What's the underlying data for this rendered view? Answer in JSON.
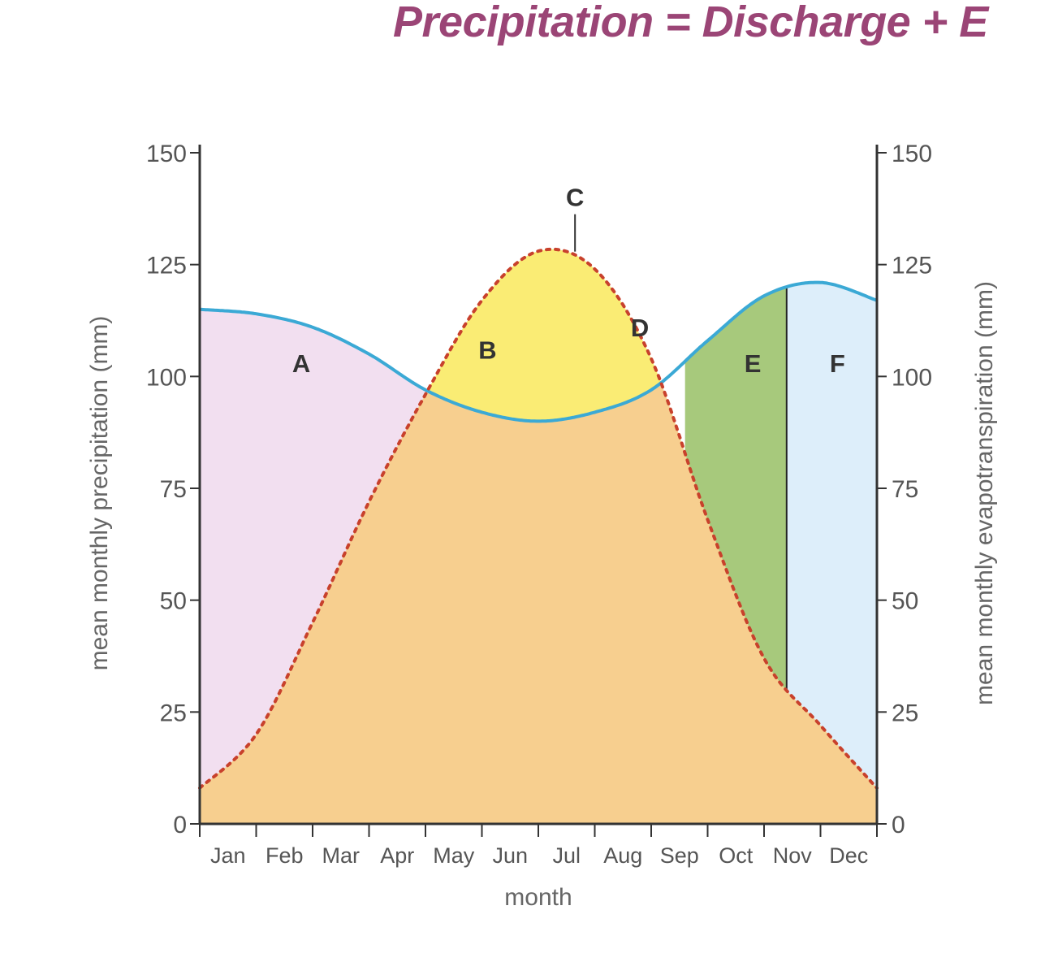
{
  "title": "Precipitation = Discharge + E",
  "chart_data": {
    "type": "area",
    "categories": [
      "Jan",
      "Feb",
      "Mar",
      "Apr",
      "May",
      "Jun",
      "Jul",
      "Aug",
      "Sep",
      "Oct",
      "Nov",
      "Dec"
    ],
    "xlabel": "month",
    "ylabel": "mean monthly precipitation (mm)",
    "ylabel_right": "mean monthly evapotranspiration (mm)",
    "ylim": [
      0,
      150
    ],
    "yticks": [
      0,
      25,
      50,
      75,
      100,
      125,
      150
    ],
    "series": [
      {
        "name": "precipitation",
        "style": "solid-blue",
        "x": [
          0,
          1,
          2,
          3,
          4,
          5,
          6,
          7,
          8,
          9,
          10,
          11,
          12
        ],
        "values": [
          115,
          114,
          111,
          105,
          97,
          92,
          90,
          92,
          97,
          108,
          118,
          121,
          117
        ]
      },
      {
        "name": "evapotranspiration",
        "style": "dotted-red",
        "x": [
          0,
          1,
          2,
          3,
          4,
          5,
          6,
          7,
          8,
          9,
          10,
          11,
          12
        ],
        "values": [
          8,
          20,
          45,
          72,
          96,
          117,
          128,
          124,
          104,
          68,
          37,
          22,
          8
        ]
      }
    ],
    "regions": [
      {
        "label": "A",
        "color": "#f2dff0"
      },
      {
        "label": "B",
        "color": "#faec74"
      },
      {
        "label": "C",
        "color": "#faec74"
      },
      {
        "label": "D",
        "color": "#faec74"
      },
      {
        "label": "E",
        "color": "#a7c97c"
      },
      {
        "label": "F",
        "color": "#ddeefa"
      }
    ],
    "colors": {
      "evapotranspiration_fill": "#f7cf8f",
      "precipitation_line": "#3ba9d5",
      "evapotranspiration_line": "#c8412c"
    },
    "grid": false
  }
}
